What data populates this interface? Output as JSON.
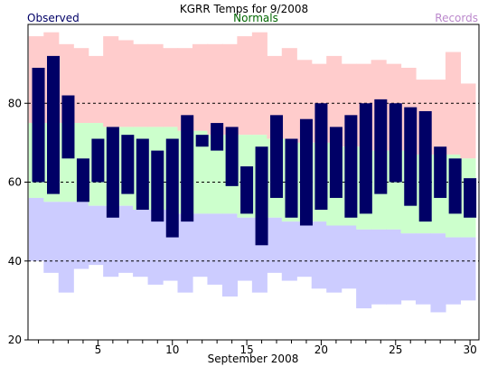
{
  "chart_data": {
    "type": "bar",
    "title": "KGRR Temps for 9/2008",
    "xlabel": "September 2008",
    "ylabel": "",
    "ylim": [
      20,
      100
    ],
    "yticks": [
      20,
      40,
      60,
      80
    ],
    "xticks": [
      5,
      10,
      15,
      20,
      25,
      30
    ],
    "gridlines_y": [
      40,
      60,
      80
    ],
    "legend": [
      {
        "name": "Observed",
        "color": "#000066",
        "placement": "top-left"
      },
      {
        "name": "Normals",
        "color": "#006600",
        "placement": "top-center"
      },
      {
        "name": "Records",
        "color": "#bb88cc",
        "placement": "top-right"
      }
    ],
    "colors": {
      "record_band": "#ffcccc",
      "normal_band": "#ccffcc",
      "low_band": "#ccccff",
      "observed": "#000066"
    },
    "days": [
      1,
      2,
      3,
      4,
      5,
      6,
      7,
      8,
      9,
      10,
      11,
      12,
      13,
      14,
      15,
      16,
      17,
      18,
      19,
      20,
      21,
      22,
      23,
      24,
      25,
      26,
      27,
      28,
      29,
      30
    ],
    "series": [
      {
        "name": "Observed",
        "high": [
          89,
          92,
          82,
          66,
          71,
          74,
          72,
          71,
          68,
          71,
          77,
          72,
          75,
          74,
          64,
          69,
          77,
          71,
          76,
          80,
          74,
          77,
          80,
          81,
          80,
          79,
          78,
          69,
          66,
          61
        ],
        "low": [
          60,
          57,
          66,
          55,
          60,
          51,
          57,
          53,
          50,
          46,
          50,
          69,
          68,
          59,
          52,
          44,
          56,
          51,
          49,
          53,
          56,
          51,
          52,
          57,
          60,
          54,
          50,
          56,
          52,
          51
        ]
      },
      {
        "name": "Normals",
        "high": [
          75,
          75,
          75,
          75,
          75,
          74,
          74,
          74,
          74,
          74,
          73,
          73,
          72,
          72,
          72,
          72,
          71,
          71,
          70,
          70,
          70,
          69,
          69,
          68,
          68,
          68,
          67,
          67,
          67,
          66
        ],
        "low": [
          56,
          55,
          55,
          55,
          54,
          54,
          54,
          53,
          53,
          53,
          52,
          52,
          52,
          52,
          51,
          51,
          51,
          50,
          50,
          50,
          49,
          49,
          48,
          48,
          48,
          47,
          47,
          47,
          46,
          46
        ]
      },
      {
        "name": "Records",
        "high": [
          97,
          98,
          95,
          94,
          92,
          97,
          96,
          95,
          95,
          94,
          94,
          95,
          95,
          95,
          97,
          98,
          92,
          94,
          91,
          90,
          92,
          90,
          90,
          91,
          90,
          89,
          86,
          86,
          93,
          85
        ],
        "low": [
          40,
          37,
          32,
          38,
          39,
          36,
          37,
          36,
          34,
          35,
          32,
          36,
          34,
          31,
          35,
          32,
          37,
          35,
          36,
          33,
          32,
          33,
          28,
          29,
          29,
          30,
          29,
          27,
          29,
          30
        ]
      }
    ]
  }
}
